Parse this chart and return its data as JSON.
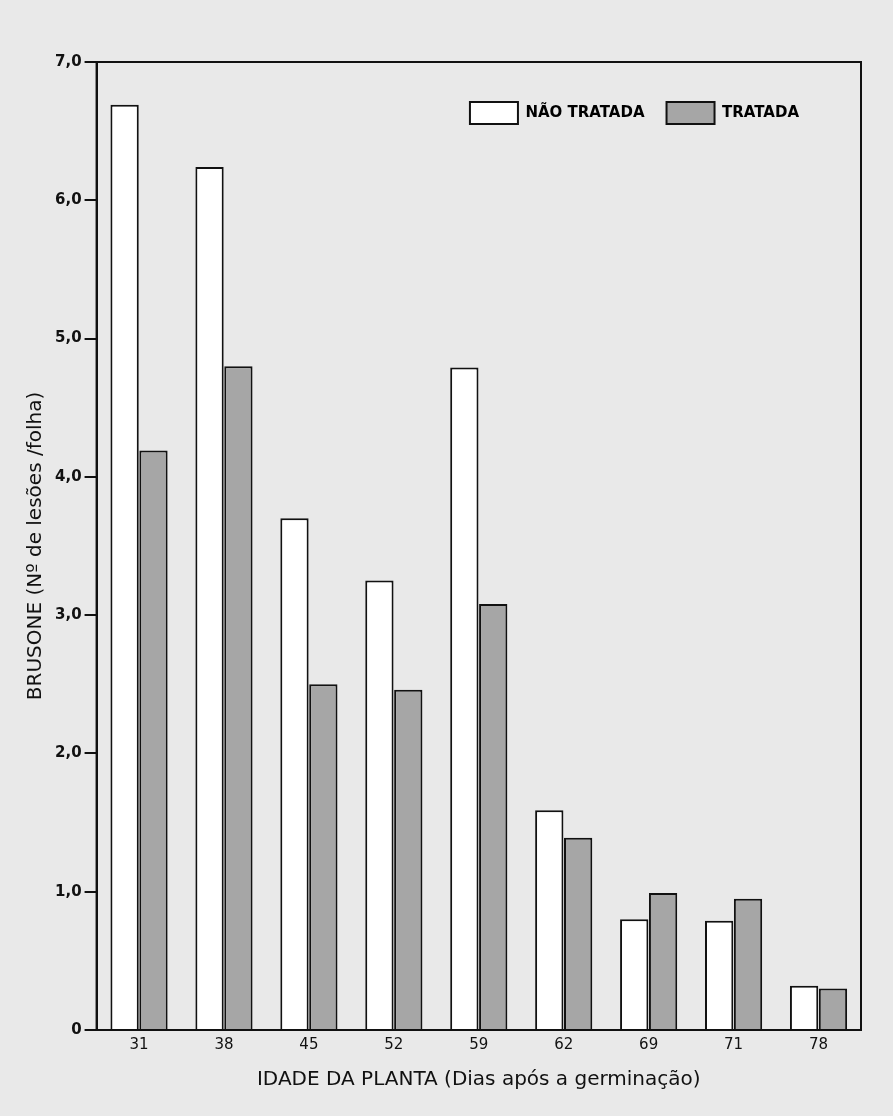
{
  "chart_data": {
    "type": "bar",
    "xlabel": "IDADE DA PLANTA (Dias após a germinação)",
    "ylabel": "BRUSONE (Nº de lesões /folha)",
    "categories": [
      "31",
      "38",
      "45",
      "52",
      "59",
      "62",
      "69",
      "71",
      "78"
    ],
    "series": [
      {
        "name": "NÃO TRATADA",
        "color": "#ffffff",
        "values": [
          6.69,
          6.24,
          3.7,
          3.25,
          4.79,
          1.59,
          0.8,
          0.79,
          0.32
        ]
      },
      {
        "name": "TRATADA",
        "color": "#a6a6a6",
        "values": [
          4.19,
          4.8,
          2.5,
          2.46,
          3.08,
          1.39,
          0.99,
          0.95,
          0.3
        ]
      }
    ],
    "ylim": [
      0,
      7
    ],
    "yticks": [
      0,
      {
        "value": 1,
        "label": "1,0"
      },
      {
        "value": 2,
        "label": "2,0"
      },
      {
        "value": 3,
        "label": "3,0"
      },
      {
        "value": 4,
        "label": "4,0"
      },
      {
        "value": 5,
        "label": "5,0"
      },
      {
        "value": 6,
        "label": "6,0"
      },
      {
        "value": 7,
        "label": "7,0"
      }
    ],
    "grid": false,
    "legend": "top right"
  }
}
